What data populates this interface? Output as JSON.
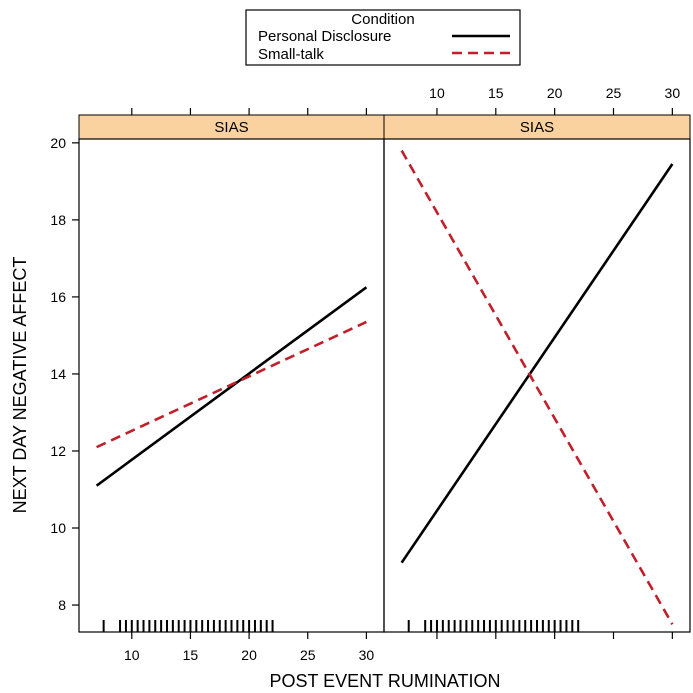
{
  "chart_data": {
    "type": "line",
    "ylabel": "NEXT DAY NEGATIVE AFFECT",
    "xlabel": "POST EVENT RUMINATION",
    "ylim": [
      7.3,
      20.1
    ],
    "xlim": [
      5.5,
      31.5
    ],
    "yticks": [
      8,
      10,
      12,
      14,
      16,
      18,
      20
    ],
    "xticks": [
      10,
      15,
      20,
      25,
      30
    ],
    "grid": false,
    "legend": {
      "title": "Condition",
      "position": "top-center",
      "entries": [
        {
          "label": "Personal Disclosure",
          "color": "#000000",
          "style": "solid"
        },
        {
          "label": "Small-talk",
          "color": "#c0202a",
          "style": "dashed"
        }
      ]
    },
    "panels": [
      {
        "strip": "SIAS",
        "tick_labels_bottom": true,
        "tick_labels_top": false,
        "series": [
          {
            "name": "Personal Disclosure",
            "x": [
              7,
              30
            ],
            "y": [
              11.1,
              16.25
            ]
          },
          {
            "name": "Small-talk",
            "x": [
              7,
              30
            ],
            "y": [
              12.1,
              15.35
            ]
          }
        ]
      },
      {
        "strip": "SIAS",
        "tick_labels_bottom": false,
        "tick_labels_top": true,
        "series": [
          {
            "name": "Personal Disclosure",
            "x": [
              7,
              30
            ],
            "y": [
              9.1,
              19.45
            ]
          },
          {
            "name": "Small-talk",
            "x": [
              7,
              30
            ],
            "y": [
              19.8,
              7.5
            ]
          }
        ]
      }
    ],
    "rug": [
      7.6,
      9.0,
      9.5,
      10.0,
      10.5,
      11.0,
      11.5,
      12.0,
      12.5,
      13.0,
      13.5,
      14.0,
      14.5,
      15.0,
      15.5,
      16.0,
      16.5,
      17.0,
      17.5,
      18.0,
      18.5,
      19.0,
      19.5,
      20.0,
      20.5,
      21.0,
      21.5,
      22.0
    ]
  }
}
